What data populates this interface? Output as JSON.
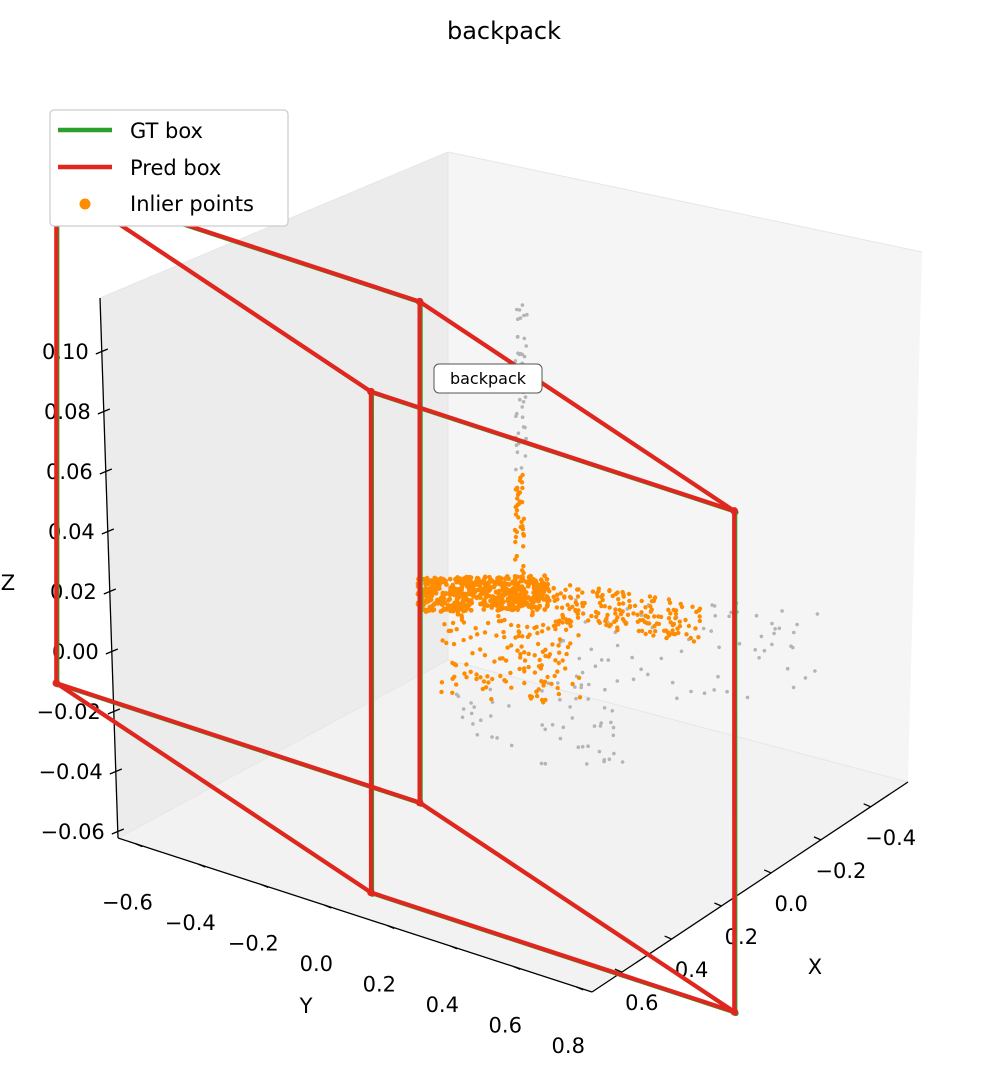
{
  "chart_data": {
    "type": "scatter3d",
    "title": "backpack",
    "xlabel": "X",
    "ylabel": "Y",
    "zlabel": "Z",
    "xlim": [
      -0.55,
      0.72
    ],
    "ylim": [
      -0.65,
      0.85
    ],
    "zlim": [
      -0.06,
      0.12
    ],
    "x_ticks": [
      "−0.4",
      "−0.2",
      "0.0",
      "0.2",
      "0.4",
      "0.6"
    ],
    "y_ticks": [
      "−0.6",
      "−0.4",
      "−0.2",
      "0.0",
      "0.2",
      "0.4",
      "0.6",
      "0.8"
    ],
    "z_ticks": [
      "−0.06",
      "−0.04",
      "−0.02",
      "0.00",
      "0.02",
      "0.04",
      "0.06",
      "0.08",
      "0.10"
    ],
    "legend_position": "top-left",
    "legend": [
      {
        "label": "GT box",
        "kind": "line",
        "color": "#2ca02c"
      },
      {
        "label": "Pred box",
        "kind": "line",
        "color": "#e0271f"
      },
      {
        "label": "Inlier points",
        "kind": "point",
        "color": "#ff8c00"
      }
    ],
    "annotation": "backpack",
    "colors": {
      "gt": "#2ca02c",
      "pred": "#e0271f",
      "inlier": "#ff8c00",
      "outlier": "#b4b4b4"
    },
    "gt_box": {
      "x": [
        -0.5,
        0.45
      ],
      "y": [
        -0.5,
        0.65
      ],
      "z": [
        -0.053,
        0.11
      ]
    },
    "pred_box": {
      "x": [
        -0.5,
        0.45
      ],
      "y": [
        -0.5,
        0.65
      ],
      "z": [
        -0.053,
        0.11
      ]
    }
  }
}
